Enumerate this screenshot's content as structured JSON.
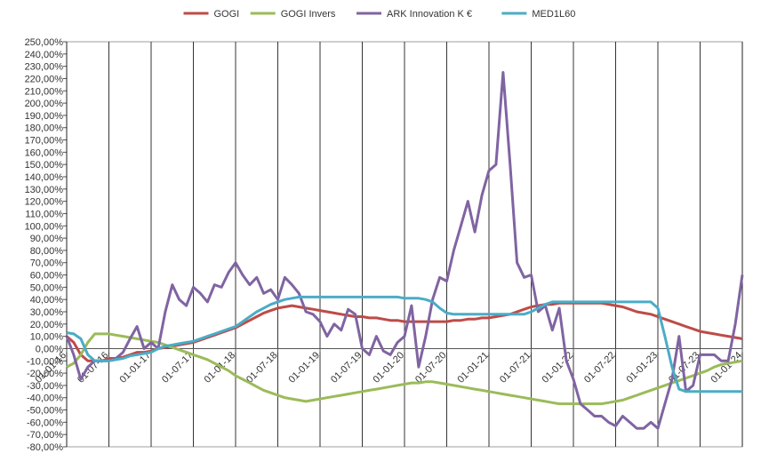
{
  "chart_data": {
    "type": "line",
    "x": [
      2016,
      2016.083,
      2016.167,
      2016.25,
      2016.333,
      2016.417,
      2016.5,
      2016.583,
      2016.667,
      2016.75,
      2016.833,
      2016.917,
      2017,
      2017.083,
      2017.167,
      2017.25,
      2017.333,
      2017.417,
      2017.5,
      2017.583,
      2017.667,
      2017.75,
      2017.833,
      2017.917,
      2018,
      2018.083,
      2018.167,
      2018.25,
      2018.333,
      2018.417,
      2018.5,
      2018.583,
      2018.667,
      2018.75,
      2018.833,
      2018.917,
      2019,
      2019.083,
      2019.167,
      2019.25,
      2019.333,
      2019.417,
      2019.5,
      2019.583,
      2019.667,
      2019.75,
      2019.833,
      2019.917,
      2020,
      2020.083,
      2020.167,
      2020.25,
      2020.333,
      2020.417,
      2020.5,
      2020.583,
      2020.667,
      2020.75,
      2020.833,
      2020.917,
      2021,
      2021.083,
      2021.167,
      2021.25,
      2021.333,
      2021.417,
      2021.5,
      2021.583,
      2021.667,
      2021.75,
      2021.833,
      2021.917,
      2022,
      2022.083,
      2022.167,
      2022.25,
      2022.333,
      2022.417,
      2022.5,
      2022.583,
      2022.667,
      2022.75,
      2022.833,
      2022.917,
      2023,
      2023.083,
      2023.167,
      2023.25,
      2023.333,
      2023.417,
      2023.5,
      2023.583,
      2023.667,
      2023.75,
      2023.833,
      2023.917,
      2024
    ],
    "series": [
      {
        "name": "GOGI",
        "color": "#be4b48",
        "values": [
          10,
          5,
          -5,
          -10,
          -10,
          -10,
          -8,
          -8,
          -7,
          -5,
          -3,
          -3,
          -2,
          0,
          1,
          2,
          3,
          4,
          5,
          7,
          9,
          11,
          13,
          15,
          17,
          20,
          23,
          26,
          29,
          31,
          33,
          34,
          35,
          34,
          33,
          32,
          31,
          30,
          29,
          28,
          27,
          26,
          26,
          25,
          25,
          24,
          23,
          23,
          22,
          22,
          22,
          22,
          22,
          22,
          22,
          23,
          23,
          24,
          24,
          25,
          25,
          26,
          27,
          28,
          30,
          32,
          34,
          35,
          36,
          36,
          37,
          37,
          37,
          37,
          37,
          37,
          37,
          36,
          35,
          34,
          32,
          30,
          29,
          28,
          26,
          24,
          22,
          20,
          18,
          16,
          14,
          13,
          12,
          11,
          10,
          9,
          8
        ]
      },
      {
        "name": "GOGI Invers",
        "color": "#9bbb59",
        "values": [
          -15,
          -12,
          -5,
          5,
          12,
          12,
          12,
          11,
          10,
          9,
          8,
          7,
          6,
          5,
          3,
          1,
          -1,
          -3,
          -5,
          -7,
          -9,
          -12,
          -15,
          -18,
          -22,
          -25,
          -28,
          -31,
          -34,
          -36,
          -38,
          -40,
          -41,
          -42,
          -43,
          -42,
          -41,
          -40,
          -39,
          -38,
          -37,
          -36,
          -35,
          -34,
          -33,
          -32,
          -31,
          -30,
          -29,
          -28,
          -28,
          -27,
          -27,
          -28,
          -29,
          -30,
          -31,
          -32,
          -33,
          -34,
          -35,
          -36,
          -37,
          -38,
          -39,
          -40,
          -41,
          -42,
          -43,
          -44,
          -45,
          -45,
          -45,
          -45,
          -45,
          -45,
          -45,
          -44,
          -43,
          -42,
          -40,
          -38,
          -36,
          -34,
          -32,
          -30,
          -28,
          -26,
          -24,
          -22,
          -20,
          -18,
          -15,
          -13,
          -12,
          -11,
          -10
        ]
      },
      {
        "name": "ARK Innovation K €",
        "color": "#8064a2",
        "values": [
          10,
          -5,
          -25,
          -15,
          -10,
          -10,
          -10,
          -8,
          -3,
          8,
          18,
          0,
          5,
          0,
          30,
          52,
          40,
          35,
          50,
          45,
          38,
          52,
          50,
          62,
          70,
          60,
          52,
          58,
          45,
          48,
          40,
          58,
          52,
          45,
          30,
          28,
          22,
          10,
          20,
          15,
          32,
          28,
          0,
          -5,
          10,
          -2,
          -5,
          5,
          10,
          35,
          -15,
          10,
          40,
          58,
          55,
          80,
          100,
          120,
          95,
          125,
          145,
          150,
          225,
          150,
          70,
          58,
          60,
          30,
          35,
          15,
          33,
          -10,
          -25,
          -45,
          -50,
          -55,
          -55,
          -60,
          -63,
          -55,
          -60,
          -65,
          -65,
          -60,
          -65,
          -45,
          -25,
          10,
          -35,
          -30,
          -5,
          -5,
          -5,
          -10,
          -10,
          20,
          60
        ]
      },
      {
        "name": "MED1L60",
        "color": "#4bacc6",
        "values": [
          13,
          12,
          8,
          -5,
          -10,
          -10,
          -10,
          -9,
          -8,
          -6,
          -5,
          -4,
          -3,
          0,
          2,
          3,
          4,
          5,
          6,
          8,
          10,
          12,
          14,
          16,
          18,
          22,
          26,
          30,
          33,
          36,
          38,
          40,
          41,
          42,
          42,
          42,
          42,
          42,
          42,
          42,
          42,
          42,
          42,
          42,
          42,
          42,
          42,
          42,
          41,
          41,
          41,
          40,
          38,
          33,
          29,
          28,
          28,
          28,
          28,
          28,
          28,
          28,
          28,
          28,
          28,
          28,
          30,
          33,
          36,
          38,
          38,
          38,
          38,
          38,
          38,
          38,
          38,
          38,
          38,
          38,
          38,
          38,
          38,
          38,
          33,
          10,
          -15,
          -33,
          -35,
          -35,
          -35,
          -35,
          -35,
          -35,
          -35,
          -35,
          -35
        ]
      }
    ],
    "xlim": [
      2016,
      2024
    ],
    "xticks": [
      {
        "value": 2016,
        "label": "01-01-16"
      },
      {
        "value": 2016.5,
        "label": "01-07-16"
      },
      {
        "value": 2017,
        "label": "01-01-17"
      },
      {
        "value": 2017.5,
        "label": "01-07-17"
      },
      {
        "value": 2018,
        "label": "01-01-18"
      },
      {
        "value": 2018.5,
        "label": "01-07-18"
      },
      {
        "value": 2019,
        "label": "01-01-19"
      },
      {
        "value": 2019.5,
        "label": "01-07-19"
      },
      {
        "value": 2020,
        "label": "01-01-20"
      },
      {
        "value": 2020.5,
        "label": "01-07-20"
      },
      {
        "value": 2021,
        "label": "01-01-21"
      },
      {
        "value": 2021.5,
        "label": "01-07-21"
      },
      {
        "value": 2022,
        "label": "01-01-22"
      },
      {
        "value": 2022.5,
        "label": "01-07-22"
      },
      {
        "value": 2023,
        "label": "01-01-23"
      },
      {
        "value": 2023.5,
        "label": "01-07-23"
      },
      {
        "value": 2024,
        "label": "01-01-24"
      }
    ],
    "ylim": [
      -80,
      250
    ],
    "yticks": [
      {
        "value": -80,
        "label": "-80,00%"
      },
      {
        "value": -70,
        "label": "-70,00%"
      },
      {
        "value": -60,
        "label": "-60,00%"
      },
      {
        "value": -50,
        "label": "-50,00%"
      },
      {
        "value": -40,
        "label": "-40,00%"
      },
      {
        "value": -30,
        "label": "-30,00%"
      },
      {
        "value": -20,
        "label": "-20,00%"
      },
      {
        "value": -10,
        "label": "-10,00%"
      },
      {
        "value": 0,
        "label": "0,00%"
      },
      {
        "value": 10,
        "label": "10,00%"
      },
      {
        "value": 20,
        "label": "20,00%"
      },
      {
        "value": 30,
        "label": "30,00%"
      },
      {
        "value": 40,
        "label": "40,00%"
      },
      {
        "value": 50,
        "label": "50,00%"
      },
      {
        "value": 60,
        "label": "60,00%"
      },
      {
        "value": 70,
        "label": "70,00%"
      },
      {
        "value": 80,
        "label": "80,00%"
      },
      {
        "value": 90,
        "label": "90,00%"
      },
      {
        "value": 100,
        "label": "100,00%"
      },
      {
        "value": 110,
        "label": "110,00%"
      },
      {
        "value": 120,
        "label": "120,00%"
      },
      {
        "value": 130,
        "label": "130,00%"
      },
      {
        "value": 140,
        "label": "140,00%"
      },
      {
        "value": 150,
        "label": "150,00%"
      },
      {
        "value": 160,
        "label": "160,00%"
      },
      {
        "value": 170,
        "label": "170,00%"
      },
      {
        "value": 180,
        "label": "180,00%"
      },
      {
        "value": 190,
        "label": "190,00%"
      },
      {
        "value": 200,
        "label": "200,00%"
      },
      {
        "value": 210,
        "label": "210,00%"
      },
      {
        "value": 220,
        "label": "220,00%"
      },
      {
        "value": 230,
        "label": "230,00%"
      },
      {
        "value": 240,
        "label": "240,00%"
      },
      {
        "value": 250,
        "label": "250,00%"
      }
    ],
    "grid": "x",
    "legend": "top"
  }
}
